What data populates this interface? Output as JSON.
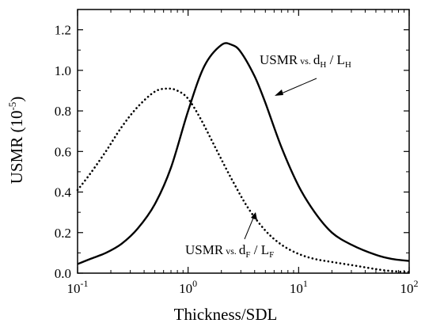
{
  "chart_data": {
    "type": "line",
    "xlabel": "Thickness/SDL",
    "ylabel": {
      "base": "USMR (10",
      "exp": "-5",
      "tail": ")"
    },
    "xscale": "log",
    "xlim": [
      0.1,
      100
    ],
    "ylim": [
      0.0,
      1.3
    ],
    "x_ticks": [
      {
        "base": "10",
        "exp": "-1"
      },
      {
        "base": "10",
        "exp": "0"
      },
      {
        "base": "10",
        "exp": "1"
      },
      {
        "base": "10",
        "exp": "2"
      }
    ],
    "y_ticks": [
      "0.0",
      "0.2",
      "0.4",
      "0.6",
      "0.8",
      "1.0",
      "1.2"
    ],
    "y_tick_values": [
      0.0,
      0.2,
      0.4,
      0.6,
      0.8,
      1.0,
      1.2
    ],
    "series": [
      {
        "style": "solid",
        "color": "#000000",
        "x": [
          0.1,
          0.13,
          0.18,
          0.25,
          0.35,
          0.5,
          0.7,
          1.0,
          1.4,
          2.0,
          2.5,
          3.0,
          4.0,
          5.0,
          7.0,
          10,
          14,
          20,
          30,
          50,
          70,
          100
        ],
        "y": [
          0.045,
          0.07,
          0.1,
          0.145,
          0.22,
          0.34,
          0.52,
          0.8,
          1.02,
          1.125,
          1.125,
          1.09,
          0.97,
          0.84,
          0.62,
          0.43,
          0.3,
          0.2,
          0.14,
          0.09,
          0.07,
          0.06
        ]
      },
      {
        "style": "dotted",
        "color": "#000000",
        "x": [
          0.1,
          0.13,
          0.18,
          0.25,
          0.35,
          0.5,
          0.65,
          0.8,
          1.0,
          1.3,
          1.8,
          2.5,
          3.5,
          5.0,
          7.0,
          10,
          14,
          20,
          30,
          50,
          70,
          100
        ],
        "y": [
          0.41,
          0.49,
          0.6,
          0.72,
          0.82,
          0.895,
          0.91,
          0.9,
          0.86,
          0.76,
          0.61,
          0.46,
          0.32,
          0.21,
          0.14,
          0.095,
          0.07,
          0.055,
          0.04,
          0.02,
          0.01,
          0.005
        ]
      }
    ],
    "annotations": [
      {
        "id": "solid-label",
        "text_parts": [
          "USMR",
          " vs. ",
          "d",
          "H",
          " / L",
          "H"
        ]
      },
      {
        "id": "dotted-label",
        "text_parts": [
          "USMR",
          " vs. ",
          "d",
          "F",
          " / L",
          "F"
        ]
      }
    ]
  }
}
